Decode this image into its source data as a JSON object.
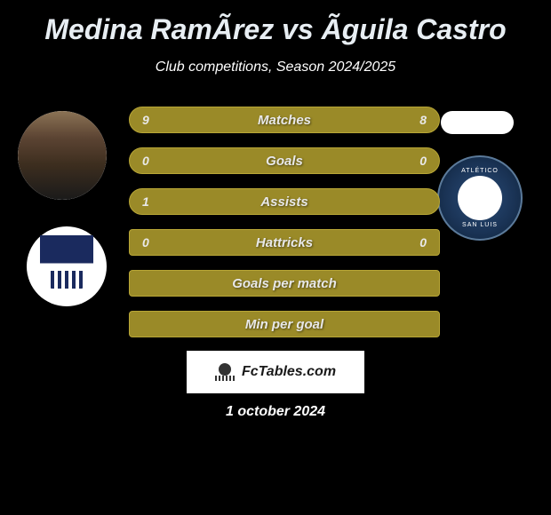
{
  "title": "Medina RamÃ­rez vs Ãguila Castro",
  "subtitle": "Club competitions, Season 2024/2025",
  "colors": {
    "background": "#000000",
    "bar_fill": "#9a8a28",
    "bar_border": "#b8a636",
    "text_primary": "#e8e8e8",
    "title_color": "#e8eef3"
  },
  "stats": [
    {
      "label": "Matches",
      "left_value": "9",
      "right_value": "8",
      "has_values": true
    },
    {
      "label": "Goals",
      "left_value": "0",
      "right_value": "0",
      "has_values": true
    },
    {
      "label": "Assists",
      "left_value": "1",
      "right_value": "",
      "has_values": true
    },
    {
      "label": "Hattricks",
      "left_value": "0",
      "right_value": "0",
      "has_values": true,
      "narrow": true
    },
    {
      "label": "Goals per match",
      "left_value": "",
      "right_value": "",
      "has_values": false,
      "narrow": true
    },
    {
      "label": "Min per goal",
      "left_value": "",
      "right_value": "",
      "has_values": false,
      "narrow": true
    }
  ],
  "footer": {
    "brand": "FcTables.com",
    "date": "1 october 2024"
  },
  "club_badge_right": {
    "text_top": "ATLÉTICO",
    "text_bottom": "SAN LUIS"
  }
}
